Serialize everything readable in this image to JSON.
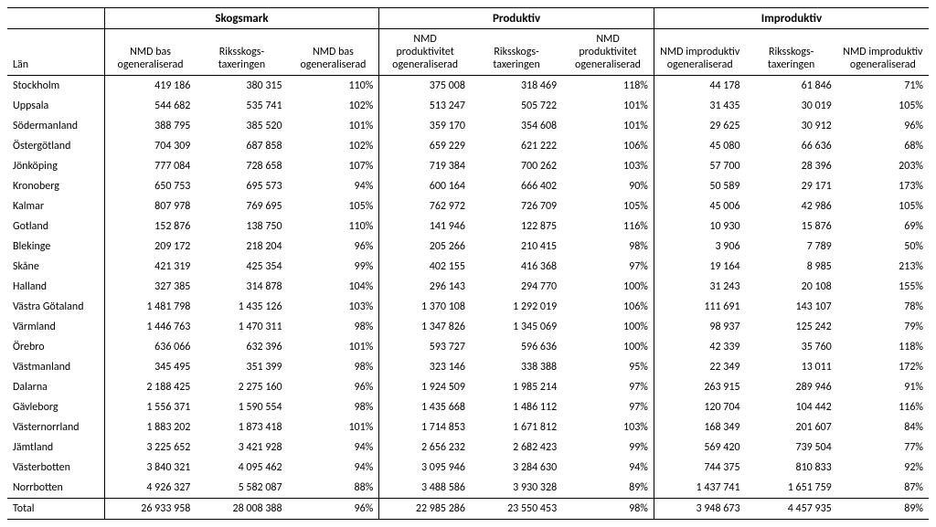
{
  "table": {
    "groups": [
      "Skogsmark",
      "Produktiv",
      "Improduktiv"
    ],
    "lanHeader": "Län",
    "subheaders": {
      "g1": [
        "NMD bas ogeneraliserad",
        "Riksskogs- taxeringen",
        "NMD bas ogeneraliserad"
      ],
      "g2": [
        "NMD produktivitet ogeneraliserad",
        "Riksskogs- taxeringen",
        "NMD produktivitet ogeneraliserad"
      ],
      "g3": [
        "NMD improduktiv ogeneraliserad",
        "Riksskogs- taxeringen",
        "NMD improduktiv ogeneraliserad"
      ]
    },
    "rows": [
      {
        "lan": "Stockholm",
        "v": [
          "419 186",
          "380 315",
          "110%",
          "375 008",
          "318 469",
          "118%",
          "44 178",
          "61 846",
          "71%"
        ]
      },
      {
        "lan": "Uppsala",
        "v": [
          "544 682",
          "535 741",
          "102%",
          "513 247",
          "505 722",
          "101%",
          "31 435",
          "30 019",
          "105%"
        ]
      },
      {
        "lan": "Södermanland",
        "v": [
          "388 795",
          "385 520",
          "101%",
          "359 170",
          "354 608",
          "101%",
          "29 625",
          "30 912",
          "96%"
        ]
      },
      {
        "lan": "Östergötland",
        "v": [
          "704 309",
          "687 858",
          "102%",
          "659 229",
          "621 222",
          "106%",
          "45 080",
          "66 636",
          "68%"
        ]
      },
      {
        "lan": "Jönköping",
        "v": [
          "777 084",
          "728 658",
          "107%",
          "719 384",
          "700 262",
          "103%",
          "57 700",
          "28 396",
          "203%"
        ]
      },
      {
        "lan": "Kronoberg",
        "v": [
          "650 753",
          "695 573",
          "94%",
          "600 164",
          "666 402",
          "90%",
          "50 589",
          "29 171",
          "173%"
        ]
      },
      {
        "lan": "Kalmar",
        "v": [
          "807 978",
          "769 695",
          "105%",
          "762 972",
          "726 709",
          "105%",
          "45 006",
          "42 986",
          "105%"
        ]
      },
      {
        "lan": "Gotland",
        "v": [
          "152 876",
          "138 750",
          "110%",
          "141 946",
          "122 875",
          "116%",
          "10 930",
          "15 876",
          "69%"
        ]
      },
      {
        "lan": "Blekinge",
        "v": [
          "209 172",
          "218 204",
          "96%",
          "205 266",
          "210 415",
          "98%",
          "3 906",
          "7 789",
          "50%"
        ]
      },
      {
        "lan": "Skåne",
        "v": [
          "421 319",
          "425 354",
          "99%",
          "402 155",
          "416 368",
          "97%",
          "19 164",
          "8 985",
          "213%"
        ]
      },
      {
        "lan": "Halland",
        "v": [
          "327 385",
          "314 878",
          "104%",
          "296 143",
          "294 770",
          "100%",
          "31 243",
          "20 108",
          "155%"
        ]
      },
      {
        "lan": "Västra Götaland",
        "v": [
          "1 481 798",
          "1 435 126",
          "103%",
          "1 370 108",
          "1 292 019",
          "106%",
          "111 691",
          "143 107",
          "78%"
        ]
      },
      {
        "lan": "Värmland",
        "v": [
          "1 446 763",
          "1 470 311",
          "98%",
          "1 347 826",
          "1 345 069",
          "100%",
          "98 937",
          "125 242",
          "79%"
        ]
      },
      {
        "lan": "Örebro",
        "v": [
          "636 066",
          "632 396",
          "101%",
          "593 727",
          "596 636",
          "100%",
          "42 339",
          "35 760",
          "118%"
        ]
      },
      {
        "lan": "Västmanland",
        "v": [
          "345 495",
          "351 399",
          "98%",
          "323 146",
          "338 388",
          "95%",
          "22 349",
          "13 011",
          "172%"
        ]
      },
      {
        "lan": "Dalarna",
        "v": [
          "2 188 425",
          "2 275 160",
          "96%",
          "1 924 509",
          "1 985 214",
          "97%",
          "263 915",
          "289 946",
          "91%"
        ]
      },
      {
        "lan": "Gävleborg",
        "v": [
          "1 556 371",
          "1 590 554",
          "98%",
          "1 435 668",
          "1 486 112",
          "97%",
          "120 704",
          "104 442",
          "116%"
        ]
      },
      {
        "lan": "Västernorrland",
        "v": [
          "1 883 202",
          "1 873 418",
          "101%",
          "1 714 853",
          "1 671 812",
          "103%",
          "168 349",
          "201 607",
          "84%"
        ]
      },
      {
        "lan": "Jämtland",
        "v": [
          "3 225 652",
          "3 421 928",
          "94%",
          "2 656 232",
          "2 682 423",
          "99%",
          "569 420",
          "739 504",
          "77%"
        ]
      },
      {
        "lan": "Västerbotten",
        "v": [
          "3 840 321",
          "4 095 462",
          "94%",
          "3 095 946",
          "3 284 630",
          "94%",
          "744 375",
          "810 833",
          "92%"
        ]
      },
      {
        "lan": "Norrbotten",
        "v": [
          "4 926 327",
          "5 582 087",
          "88%",
          "3 488 586",
          "3 930 328",
          "89%",
          "1 437 741",
          "1 651 759",
          "87%"
        ]
      }
    ],
    "total": {
      "lan": "Total",
      "v": [
        "26 933 958",
        "28 008 388",
        "96%",
        "22 985 286",
        "23 550 453",
        "98%",
        "3 948 673",
        "4 457 935",
        "89%"
      ]
    }
  }
}
